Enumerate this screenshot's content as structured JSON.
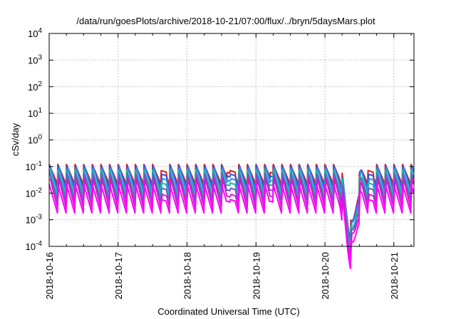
{
  "chart_data": {
    "type": "line",
    "title": "/data/run/goesPlots/archive/2018-10-21/07:00/flux/../bryn/5daysMars.plot",
    "xlabel": "Coordinated Universal Time (UTC)",
    "ylabel": "cSv/day",
    "yscale": "log",
    "ylim": [
      0.0001,
      10000
    ],
    "xlim": [
      "2018-10-16T00:00",
      "2018-10-21T07:00"
    ],
    "grid": true,
    "legend": "none",
    "x_ticks": [
      "2018-10-16",
      "2018-10-17",
      "2018-10-18",
      "2018-10-19",
      "2018-10-20",
      "2018-10-21"
    ],
    "y_ticks": [
      {
        "base": "10",
        "exp": "-4",
        "value": 0.0001
      },
      {
        "base": "10",
        "exp": "-3",
        "value": 0.001
      },
      {
        "base": "10",
        "exp": "-2",
        "value": 0.01
      },
      {
        "base": "10",
        "exp": "-1",
        "value": 0.1
      },
      {
        "base": "10",
        "exp": "0",
        "value": 1
      },
      {
        "base": "10",
        "exp": "1",
        "value": 10
      },
      {
        "base": "10",
        "exp": "2",
        "value": 100
      },
      {
        "base": "10",
        "exp": "3",
        "value": 1000
      },
      {
        "base": "10",
        "exp": "4",
        "value": 10000
      }
    ],
    "pattern": {
      "description_free_sawtooth": true,
      "period_hours": 3,
      "peak_hours": [
        0,
        3,
        6,
        9,
        12,
        15,
        18,
        21,
        24,
        27,
        30,
        33,
        36,
        39,
        42,
        45,
        48,
        51,
        54,
        57,
        60,
        63,
        66,
        69,
        72,
        75,
        78,
        81,
        84,
        87,
        90,
        93,
        96,
        99,
        102,
        105,
        108,
        111,
        114,
        117,
        120,
        123,
        126
      ],
      "gap_hours": [
        [
          39,
          41
        ],
        [
          62,
          65
        ],
        [
          77,
          78
        ],
        [
          111,
          113
        ]
      ],
      "dip_hours": [
        101,
        109
      ],
      "dip_min_factor": 0.008
    },
    "series": [
      {
        "color": "#e41a1c",
        "peak": 0.12,
        "trough": 0.022
      },
      {
        "color": "#3a4fd6",
        "peak": 0.11,
        "trough": 0.016
      },
      {
        "color": "#2c8fe8",
        "peak": 0.09,
        "trough": 0.011
      },
      {
        "color": "#1fb89a",
        "peak": 0.075,
        "trough": 0.0075
      },
      {
        "color": "#6a5acd",
        "peak": 0.055,
        "trough": 0.0048
      },
      {
        "color": "#d01cc8",
        "peak": 0.035,
        "trough": 0.0028
      },
      {
        "color": "#ff00ff",
        "peak": 0.022,
        "trough": 0.0018
      }
    ]
  }
}
